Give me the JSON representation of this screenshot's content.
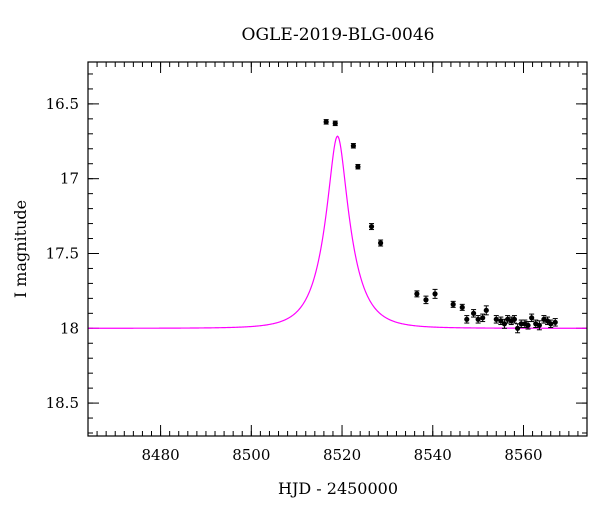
{
  "chart_data": {
    "type": "scatter",
    "title": "OGLE-2019-BLG-0046",
    "xlabel": "HJD - 2450000",
    "ylabel": "I magnitude",
    "xlim": [
      8464,
      8574
    ],
    "ylim": [
      16.22,
      18.72
    ],
    "y_inverted": true,
    "grid": false,
    "x_ticks": [
      8480,
      8500,
      8520,
      8540,
      8560
    ],
    "x_tick_labels": [
      "8480",
      "8500",
      "8520",
      "8540",
      "8560"
    ],
    "y_ticks": [
      16.5,
      17,
      17.5,
      18,
      18.5
    ],
    "y_tick_labels": [
      "16.5",
      "17",
      "17.5",
      "18",
      "18.5"
    ],
    "series": [
      {
        "type": "scatter_errorbar",
        "color": "#000000",
        "points": [
          {
            "x": 8516.5,
            "y": 16.62,
            "err": 0.015
          },
          {
            "x": 8518.5,
            "y": 16.63,
            "err": 0.015
          },
          {
            "x": 8522.5,
            "y": 16.78,
            "err": 0.015
          },
          {
            "x": 8523.5,
            "y": 16.92,
            "err": 0.015
          },
          {
            "x": 8526.5,
            "y": 17.32,
            "err": 0.02
          },
          {
            "x": 8528.5,
            "y": 17.43,
            "err": 0.02
          },
          {
            "x": 8536.5,
            "y": 17.77,
            "err": 0.02
          },
          {
            "x": 8538.5,
            "y": 17.81,
            "err": 0.025
          },
          {
            "x": 8540.5,
            "y": 17.77,
            "err": 0.03
          },
          {
            "x": 8544.5,
            "y": 17.84,
            "err": 0.02
          },
          {
            "x": 8546.5,
            "y": 17.86,
            "err": 0.02
          },
          {
            "x": 8547.5,
            "y": 17.94,
            "err": 0.025
          },
          {
            "x": 8549.0,
            "y": 17.9,
            "err": 0.025
          },
          {
            "x": 8550.0,
            "y": 17.94,
            "err": 0.025
          },
          {
            "x": 8551.0,
            "y": 17.93,
            "err": 0.025
          },
          {
            "x": 8551.8,
            "y": 17.88,
            "err": 0.03
          },
          {
            "x": 8554.0,
            "y": 17.94,
            "err": 0.025
          },
          {
            "x": 8555.0,
            "y": 17.95,
            "err": 0.025
          },
          {
            "x": 8555.8,
            "y": 17.97,
            "err": 0.03
          },
          {
            "x": 8556.5,
            "y": 17.94,
            "err": 0.025
          },
          {
            "x": 8557.3,
            "y": 17.95,
            "err": 0.025
          },
          {
            "x": 8558.0,
            "y": 17.94,
            "err": 0.025
          },
          {
            "x": 8558.7,
            "y": 18.0,
            "err": 0.03
          },
          {
            "x": 8559.5,
            "y": 17.97,
            "err": 0.025
          },
          {
            "x": 8560.3,
            "y": 17.97,
            "err": 0.025
          },
          {
            "x": 8561.0,
            "y": 17.98,
            "err": 0.025
          },
          {
            "x": 8561.8,
            "y": 17.93,
            "err": 0.025
          },
          {
            "x": 8562.7,
            "y": 17.97,
            "err": 0.025
          },
          {
            "x": 8563.5,
            "y": 17.98,
            "err": 0.03
          },
          {
            "x": 8564.5,
            "y": 17.94,
            "err": 0.025
          },
          {
            "x": 8565.3,
            "y": 17.95,
            "err": 0.025
          },
          {
            "x": 8566.0,
            "y": 17.97,
            "err": 0.025
          },
          {
            "x": 8567.0,
            "y": 17.96,
            "err": 0.025
          }
        ]
      },
      {
        "type": "model_curve",
        "color": "#ff00ff",
        "model": {
          "t0": 8519.0,
          "tE": 5.6,
          "u0": 0.318,
          "baseline": 18.0
        }
      }
    ]
  }
}
